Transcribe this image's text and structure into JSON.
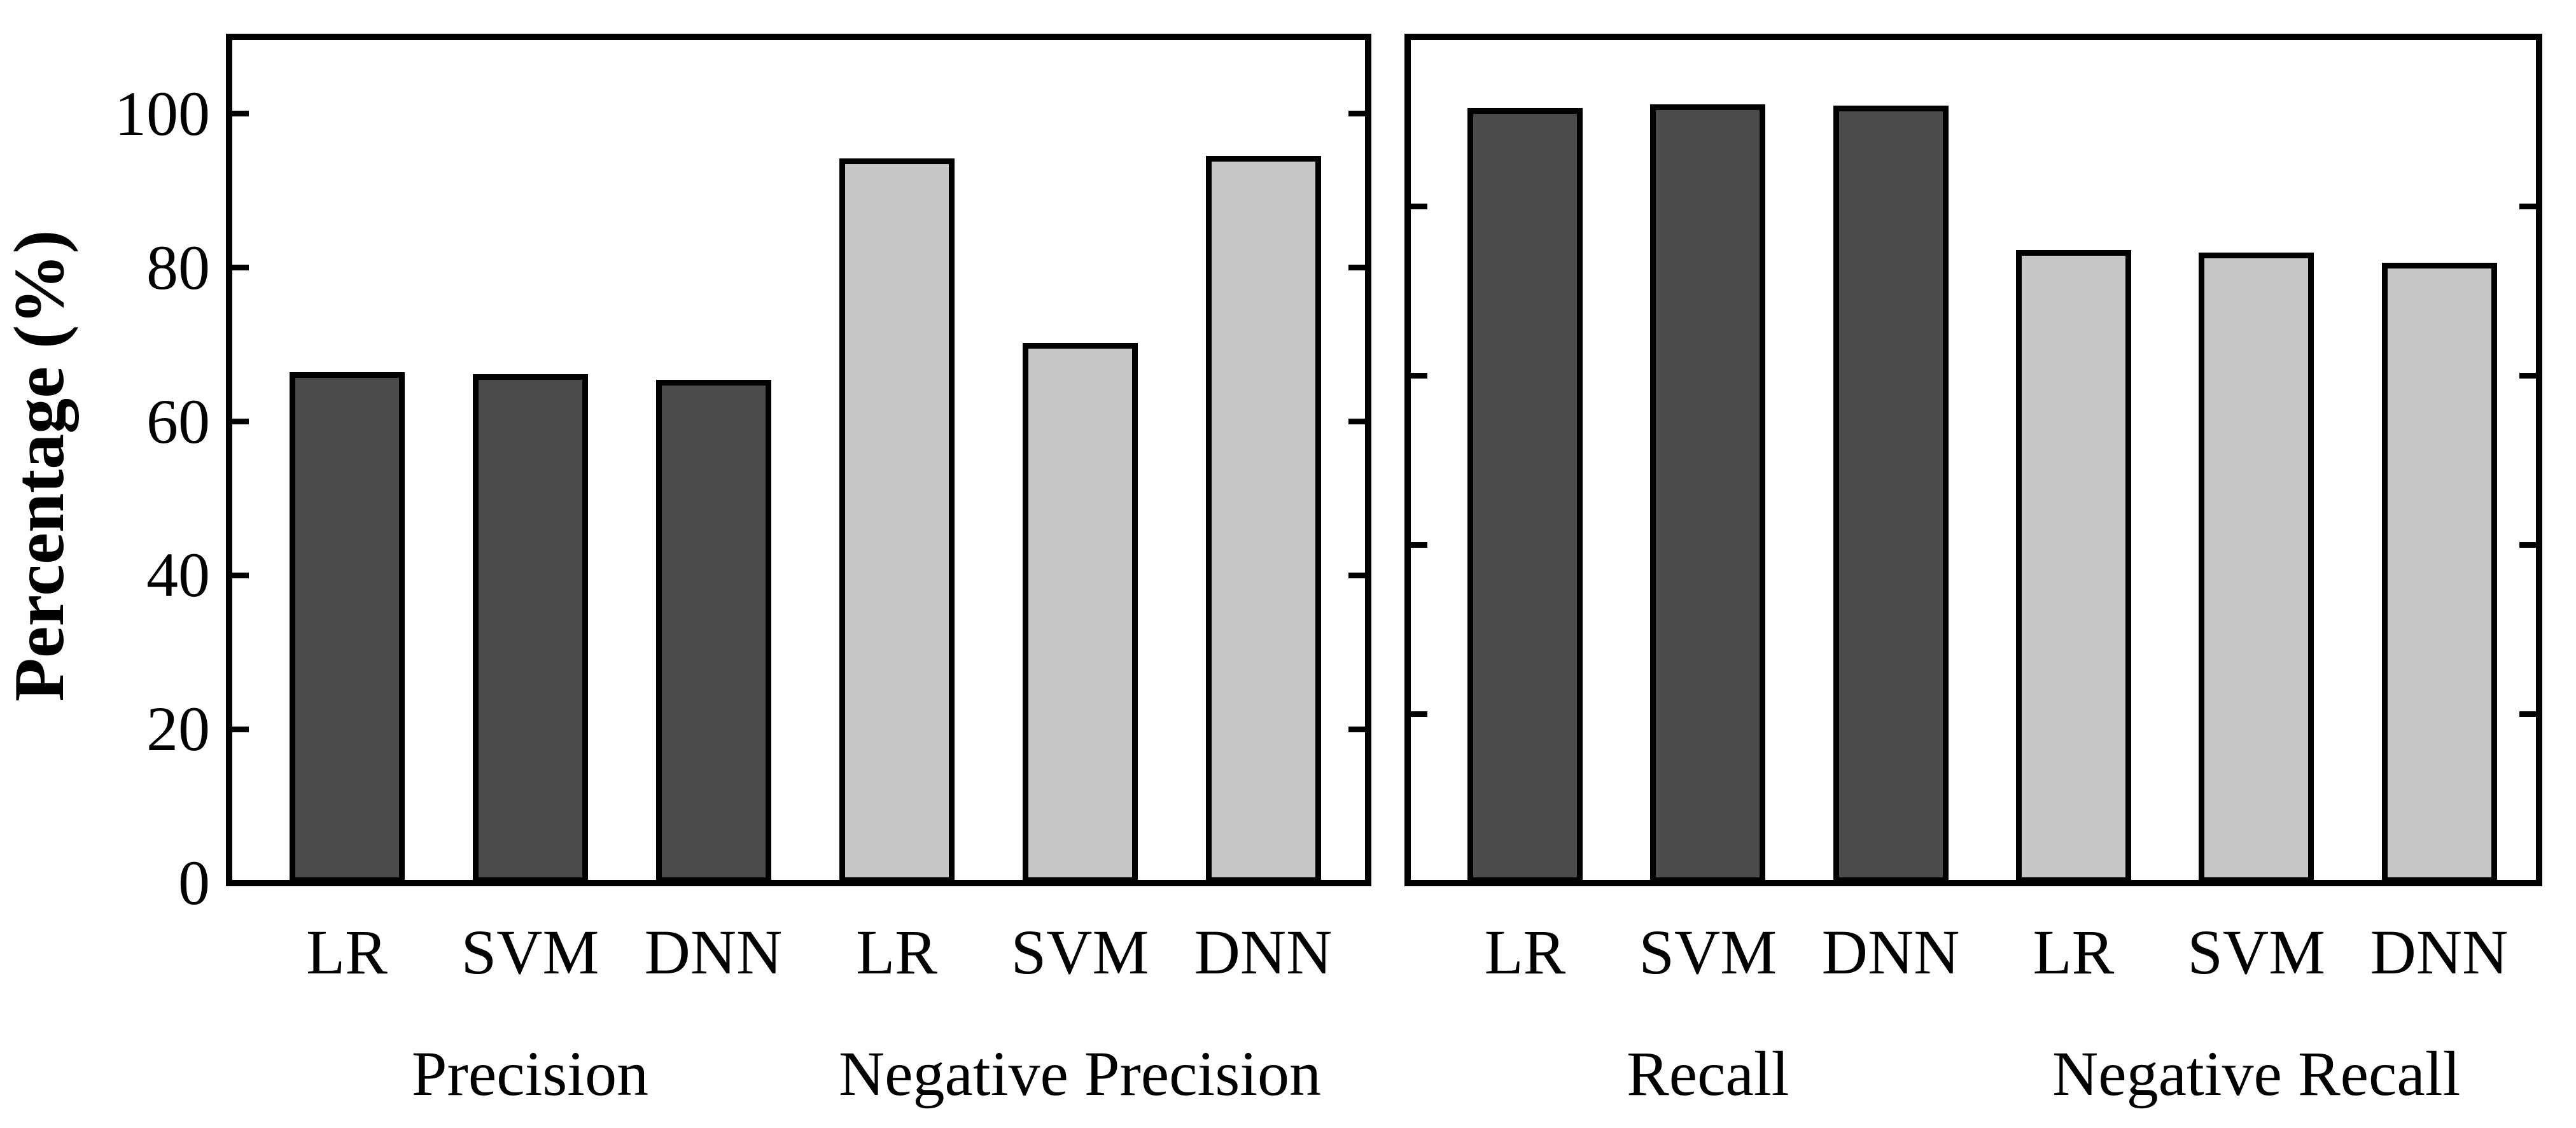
{
  "figure": {
    "background": "#ffffff",
    "colors": {
      "dark_bar": "#4a4a4a",
      "light_bar": "#c7c7c7",
      "edge": "#000000"
    }
  },
  "chart_data": {
    "type": "bar",
    "title": "",
    "xlabel": "",
    "ylabel": "Percentage (%)",
    "grid": false,
    "legend": null,
    "panels": [
      {
        "name": "left",
        "ylim": [
          0,
          110
        ],
        "yticks": [
          0,
          20,
          40,
          60,
          80,
          100
        ],
        "ytick_labels": [
          "0",
          "20",
          "40",
          "60",
          "80",
          "100"
        ],
        "ytick_labels_shown": true,
        "groups": [
          "Precision",
          "Negative Precision"
        ],
        "categories": [
          "LR",
          "SVM",
          "DNN",
          "LR",
          "SVM",
          "DNN"
        ],
        "series": [
          {
            "name": "Precision",
            "models": [
              "LR",
              "SVM",
              "DNN"
            ],
            "values": [
              66.1,
              65.8,
              65.1
            ],
            "color": "#4a4a4a"
          },
          {
            "name": "Negative Precision",
            "models": [
              "LR",
              "SVM",
              "DNN"
            ],
            "values": [
              93.9,
              69.9,
              94.2
            ],
            "color": "#c7c7c7"
          }
        ]
      },
      {
        "name": "right",
        "ylim": [
          0,
          100
        ],
        "yticks": [
          20,
          40,
          60,
          80
        ],
        "ytick_labels": [],
        "ytick_labels_shown": false,
        "groups": [
          "Recall",
          "Negative Recall"
        ],
        "categories": [
          "LR",
          "SVM",
          "DNN",
          "LR",
          "SVM",
          "DNN"
        ],
        "series": [
          {
            "name": "Recall",
            "models": [
              "LR",
              "SVM",
              "DNN"
            ],
            "values": [
              91.3,
              91.7,
              91.6
            ],
            "color": "#4a4a4a"
          },
          {
            "name": "Negative Recall",
            "models": [
              "LR",
              "SVM",
              "DNN"
            ],
            "values": [
              74.5,
              74.2,
              73.0
            ],
            "color": "#c7c7c7"
          }
        ]
      }
    ]
  }
}
